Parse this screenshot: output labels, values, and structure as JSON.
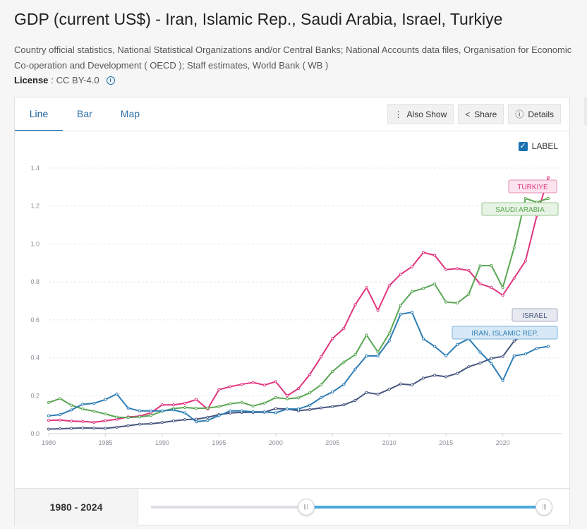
{
  "header": {
    "title": "GDP (current US$) - Iran, Islamic Rep., Saudi Arabia, Israel, Turkiye",
    "source": "Country official statistics, National Statistical Organizations and/or Central Banks; National Accounts data files, Organisation for Economic Co-operation and Development ( OECD ); Staff estimates, World Bank ( WB )",
    "license_label": "License",
    "license_value": ": CC BY-4.0",
    "info_icon": "info-icon"
  },
  "tabs": [
    {
      "label": "Line",
      "active": true
    },
    {
      "label": "Bar",
      "active": false
    },
    {
      "label": "Map",
      "active": false
    }
  ],
  "actions": {
    "also_show": "Also Show",
    "share": "Share",
    "details": "Details",
    "icons": [
      "more-vertical-icon",
      "share-icon",
      "info-icon"
    ]
  },
  "label_toggle": {
    "label": "LABEL",
    "checked": true
  },
  "footer": {
    "range_label": "1980 - 2024",
    "range_start": 1980,
    "range_end": 2024,
    "fill_start_fraction": 0.39,
    "fill_end_fraction": 0.99
  },
  "chart_data": {
    "type": "line",
    "title": "",
    "xlabel": "",
    "ylabel": "",
    "xlim": [
      1980,
      2024
    ],
    "ylim": [
      0,
      1.4
    ],
    "yticks": [
      0.0,
      0.2,
      0.4,
      0.6,
      0.8,
      1.0,
      1.2,
      1.4
    ],
    "xticks": [
      1980,
      1985,
      1990,
      1995,
      2000,
      2005,
      2010,
      2015,
      2020
    ],
    "grid": true,
    "x": [
      1980,
      1981,
      1982,
      1983,
      1984,
      1985,
      1986,
      1987,
      1988,
      1989,
      1990,
      1991,
      1992,
      1993,
      1994,
      1995,
      1996,
      1997,
      1998,
      1999,
      2000,
      2001,
      2002,
      2003,
      2004,
      2005,
      2006,
      2007,
      2008,
      2009,
      2010,
      2011,
      2012,
      2013,
      2014,
      2015,
      2016,
      2017,
      2018,
      2019,
      2020,
      2021,
      2022,
      2023,
      2024
    ],
    "series": [
      {
        "name": "TURKIYE",
        "color": "#e0357f",
        "label_bg": "#fbe3ee",
        "label_border": "#e98bb4",
        "values": [
          0.07,
          0.072,
          0.066,
          0.064,
          0.06,
          0.068,
          0.076,
          0.088,
          0.092,
          0.11,
          0.152,
          0.152,
          0.16,
          0.18,
          0.13,
          0.232,
          0.248,
          0.26,
          0.27,
          0.256,
          0.274,
          0.2,
          0.238,
          0.312,
          0.405,
          0.502,
          0.555,
          0.68,
          0.77,
          0.65,
          0.78,
          0.84,
          0.88,
          0.955,
          0.94,
          0.865,
          0.87,
          0.86,
          0.79,
          0.77,
          0.73,
          0.82,
          0.91,
          1.15,
          1.35
        ]
      },
      {
        "name": "SAUDI ARABIA",
        "color": "#5aa653",
        "label_bg": "#e7f3e4",
        "label_border": "#97c98f",
        "values": [
          0.164,
          0.185,
          0.15,
          0.13,
          0.118,
          0.104,
          0.087,
          0.085,
          0.088,
          0.096,
          0.118,
          0.132,
          0.138,
          0.133,
          0.135,
          0.143,
          0.158,
          0.165,
          0.146,
          0.161,
          0.19,
          0.184,
          0.189,
          0.215,
          0.258,
          0.328,
          0.377,
          0.416,
          0.52,
          0.43,
          0.528,
          0.676,
          0.748,
          0.766,
          0.789,
          0.694,
          0.689,
          0.735,
          0.885,
          0.886,
          0.77,
          0.98,
          1.24,
          1.22,
          1.24
        ]
      },
      {
        "name": "ISRAEL",
        "color": "#47577f",
        "label_bg": "#e7e9f1",
        "label_border": "#a6acc6",
        "values": [
          0.024,
          0.026,
          0.028,
          0.03,
          0.029,
          0.028,
          0.034,
          0.042,
          0.05,
          0.052,
          0.059,
          0.067,
          0.074,
          0.076,
          0.086,
          0.1,
          0.109,
          0.112,
          0.112,
          0.113,
          0.132,
          0.13,
          0.121,
          0.127,
          0.136,
          0.143,
          0.152,
          0.175,
          0.217,
          0.208,
          0.234,
          0.262,
          0.257,
          0.293,
          0.308,
          0.3,
          0.318,
          0.353,
          0.372,
          0.397,
          0.407,
          0.488,
          0.525,
          0.51,
          0.54
        ]
      },
      {
        "name": "IRAN, ISLAMIC REP.",
        "color": "#2e7db4",
        "label_bg": "#d7e9f6",
        "label_border": "#7db4dc",
        "values": [
          0.094,
          0.1,
          0.125,
          0.155,
          0.16,
          0.18,
          0.209,
          0.135,
          0.12,
          0.12,
          0.12,
          0.125,
          0.11,
          0.063,
          0.07,
          0.095,
          0.12,
          0.12,
          0.115,
          0.115,
          0.11,
          0.13,
          0.13,
          0.15,
          0.19,
          0.22,
          0.26,
          0.34,
          0.41,
          0.41,
          0.49,
          0.63,
          0.64,
          0.5,
          0.46,
          0.41,
          0.47,
          0.5,
          0.43,
          0.37,
          0.28,
          0.41,
          0.42,
          0.45,
          0.46
        ]
      }
    ]
  }
}
